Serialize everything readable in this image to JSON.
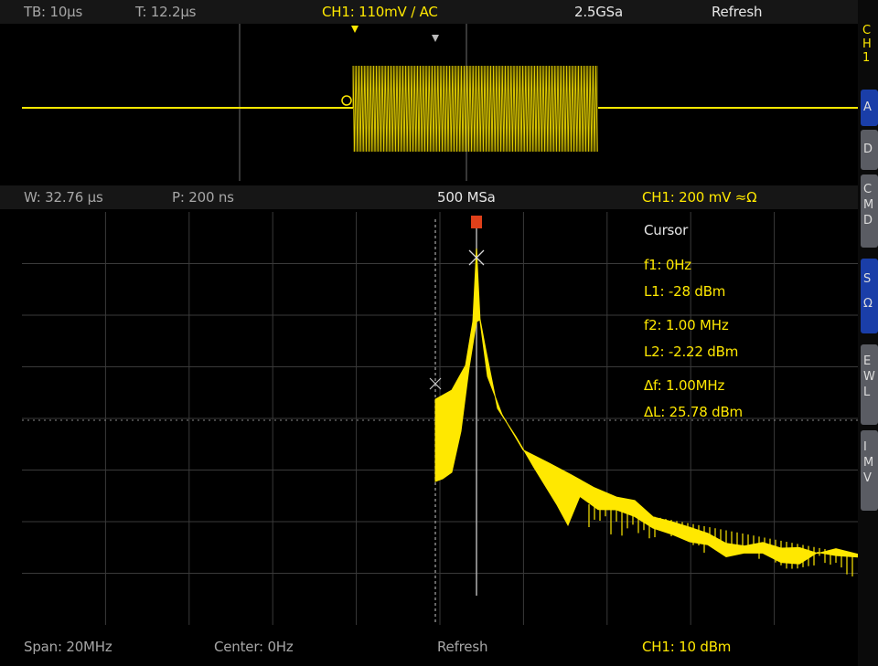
{
  "top_bar": {
    "timebase": "TB: 10µs",
    "trigger_time": "T: 12.2µs",
    "channel": "CH1: 110mV / AC",
    "sample_rate": "2.5GSa",
    "mode": "Refresh"
  },
  "middle_bar": {
    "window": "W: 32.76 µs",
    "position": "P: 200 ns",
    "sample_rate": "500 MSa",
    "channel": "CH1: 200 mV ≈Ω"
  },
  "cursor_readout": {
    "title": "Cursor",
    "f1": "f1: 0Hz",
    "l1": "L1: -28 dBm",
    "f2": "f2: 1.00 MHz",
    "l2": "L2: -2.22 dBm",
    "df": "Δf: 1.00MHz",
    "dl": "ΔL: 25.78 dBm"
  },
  "bottom_bar": {
    "span": "Span: 20MHz",
    "center": "Center: 0Hz",
    "mode": "Refresh",
    "channel": "CH1: 10 dBm"
  },
  "side_menu": {
    "header": [
      "C",
      "H",
      "1"
    ],
    "items": [
      {
        "text": [
          "A"
        ],
        "style": "blue"
      },
      {
        "text": [
          "D"
        ],
        "style": "gray"
      },
      {
        "text": [
          "C",
          "M",
          "D"
        ],
        "style": "gray"
      },
      {
        "text": [
          "S",
          "Ω"
        ],
        "style": "blue"
      },
      {
        "text": [
          "E",
          "W",
          "L"
        ],
        "style": "gray"
      },
      {
        "text": [
          "I",
          "M",
          "V"
        ],
        "style": "gray"
      }
    ]
  },
  "markers": {
    "cursor_tag": "S",
    "level_marker": "L",
    "trigger_marker": "T"
  },
  "colors": {
    "trace": "#ffe800",
    "text_grey": "#a6a6a6",
    "grid": "#3a3a3a",
    "menu_blue": "#1a3ea8",
    "menu_gray": "#5a5c63",
    "cursor_tag": "#e0401a"
  }
}
